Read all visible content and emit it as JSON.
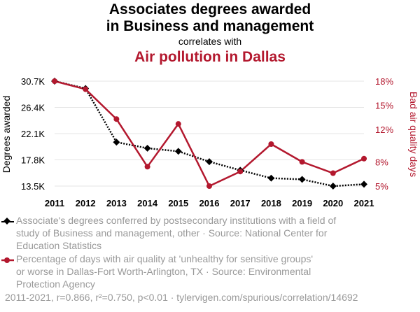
{
  "title_line1": "Associates degrees awarded",
  "title_line2": "in Business and management",
  "correlates_with": "correlates with",
  "title_line3": "Air pollution in Dallas",
  "colors": {
    "series1": "#000000",
    "series2": "#b3182e",
    "grid": "#e5e5e5",
    "legend_text": "#999999"
  },
  "chart_data": {
    "type": "line",
    "x": [
      2011,
      2012,
      2013,
      2014,
      2015,
      2016,
      2017,
      2018,
      2019,
      2020,
      2021
    ],
    "xlim": [
      2011,
      2021
    ],
    "left_axis": {
      "label": "Degrees awarded",
      "ylim": [
        13500,
        30700
      ],
      "ticks": [
        13500,
        17800,
        22100,
        26400,
        30700
      ],
      "tick_labels": [
        "13.5K",
        "17.8K",
        "22.1K",
        "26.4K",
        "30.7K"
      ]
    },
    "right_axis": {
      "label": "Bad air quality days",
      "ylim": [
        5,
        18
      ],
      "ticks": [
        5,
        8,
        12,
        15,
        18
      ],
      "tick_labels": [
        "5%",
        "8%",
        "12%",
        "15%",
        "18%"
      ]
    },
    "series": [
      {
        "axis": "left",
        "style": "dotted",
        "marker": "diamond",
        "values": [
          30700,
          29500,
          20700,
          19700,
          19200,
          17500,
          16100,
          14800,
          14600,
          13500,
          13800
        ]
      },
      {
        "axis": "right",
        "style": "solid",
        "marker": "circle",
        "values": [
          18.0,
          17.0,
          13.3,
          7.4,
          12.7,
          5.0,
          6.8,
          10.2,
          8.0,
          6.6,
          8.4
        ]
      }
    ],
    "grid": "horizontal"
  },
  "legend": [
    {
      "text_lines": [
        "Associate's degrees conferred by postsecondary institutions with a field of",
        "study of Business and management, other · Source: National Center for",
        "Education Statistics"
      ]
    },
    {
      "text_lines": [
        "Percentage of days with air quality at 'unhealthy for sensitive groups'",
        "or worse in Dallas-Fort Worth-Arlington, TX · Source: Environmental",
        "Protection Agency"
      ]
    }
  ],
  "footer": "2011-2021, r=0.866, r²=0.750, p<0.01 · tylervigen.com/spurious/correlation/14692"
}
